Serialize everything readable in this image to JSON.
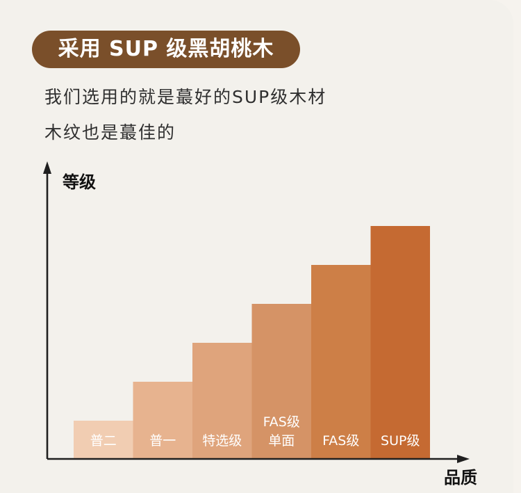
{
  "title": "采用 SUP 级黑胡桃木",
  "description": {
    "line1": "我们选用的就是蕞好的SUP级木材",
    "line2": "木纹也是蕞佳的"
  },
  "colors": {
    "title_pill": "#7a4f2a",
    "axis": "#1f1f1f",
    "bars": [
      "#f1cdb2",
      "#e7b38f",
      "#dfa47c",
      "#d59366",
      "#cd7f47",
      "#c56a32"
    ]
  },
  "chart_data": {
    "type": "bar",
    "ylabel": "等级",
    "xlabel": "品质",
    "categories": [
      "普二",
      "普一",
      "特选级",
      "FAS级 单面",
      "FAS级",
      "SUP级"
    ],
    "values": [
      1,
      2,
      3,
      4,
      5,
      6
    ],
    "ylim": [
      0,
      6
    ],
    "grid": false,
    "legend": "none"
  }
}
